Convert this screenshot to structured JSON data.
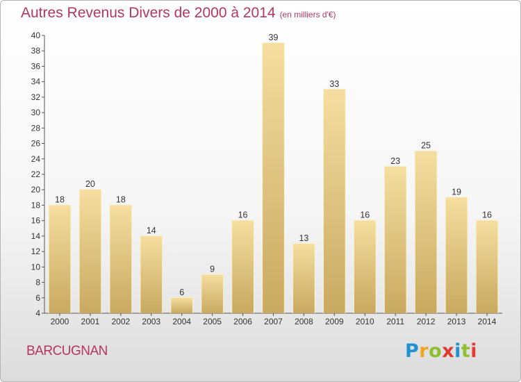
{
  "title": "Autres Revenus Divers de 2000 à 2014",
  "subtitle": "(en milliers d'€)",
  "commune": "BARCUGNAN",
  "logo": "Proxiti",
  "colors": {
    "bar_top": "#f5dea0",
    "bar_bottom": "#c8a95f",
    "title": "#b5355f"
  },
  "chart_data": {
    "type": "bar",
    "title": "Autres Revenus Divers de 2000 à 2014",
    "categories": [
      "2000",
      "2001",
      "2002",
      "2003",
      "2004",
      "2005",
      "2006",
      "2007",
      "2008",
      "2009",
      "2010",
      "2011",
      "2012",
      "2013",
      "2014"
    ],
    "values": [
      18,
      20,
      18,
      14,
      6,
      9,
      16,
      39,
      13,
      33,
      16,
      23,
      25,
      19,
      16
    ],
    "ylim": [
      4,
      40
    ],
    "yticks": [
      4,
      6,
      8,
      10,
      12,
      14,
      16,
      18,
      20,
      22,
      24,
      26,
      28,
      30,
      32,
      34,
      36,
      38,
      40
    ],
    "grid": false,
    "data_labels": true
  }
}
